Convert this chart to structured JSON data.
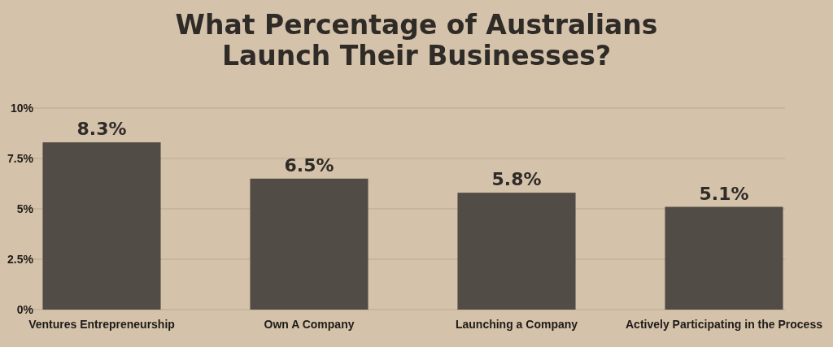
{
  "chart_data": {
    "type": "bar",
    "title": "What Percentage of Australians\nLaunch Their Businesses?",
    "categories": [
      "Ventures Entrepreneurship",
      "Own A Company",
      "Launching a Company",
      "Actively Participating in the Process"
    ],
    "values": [
      8.3,
      6.5,
      5.8,
      5.1
    ],
    "value_labels": [
      "8.3%",
      "6.5%",
      "5.8%",
      "5.1%"
    ],
    "color": "#524c46",
    "ylim": [
      0,
      10
    ],
    "yticks": [
      {
        "value": 0,
        "label": "0%"
      },
      {
        "value": 2.5,
        "label": "2.5%"
      },
      {
        "value": 5,
        "label": "5%"
      },
      {
        "value": 7.5,
        "label": "7.5%"
      },
      {
        "value": 10,
        "label": "10%"
      }
    ],
    "grid": "y"
  }
}
